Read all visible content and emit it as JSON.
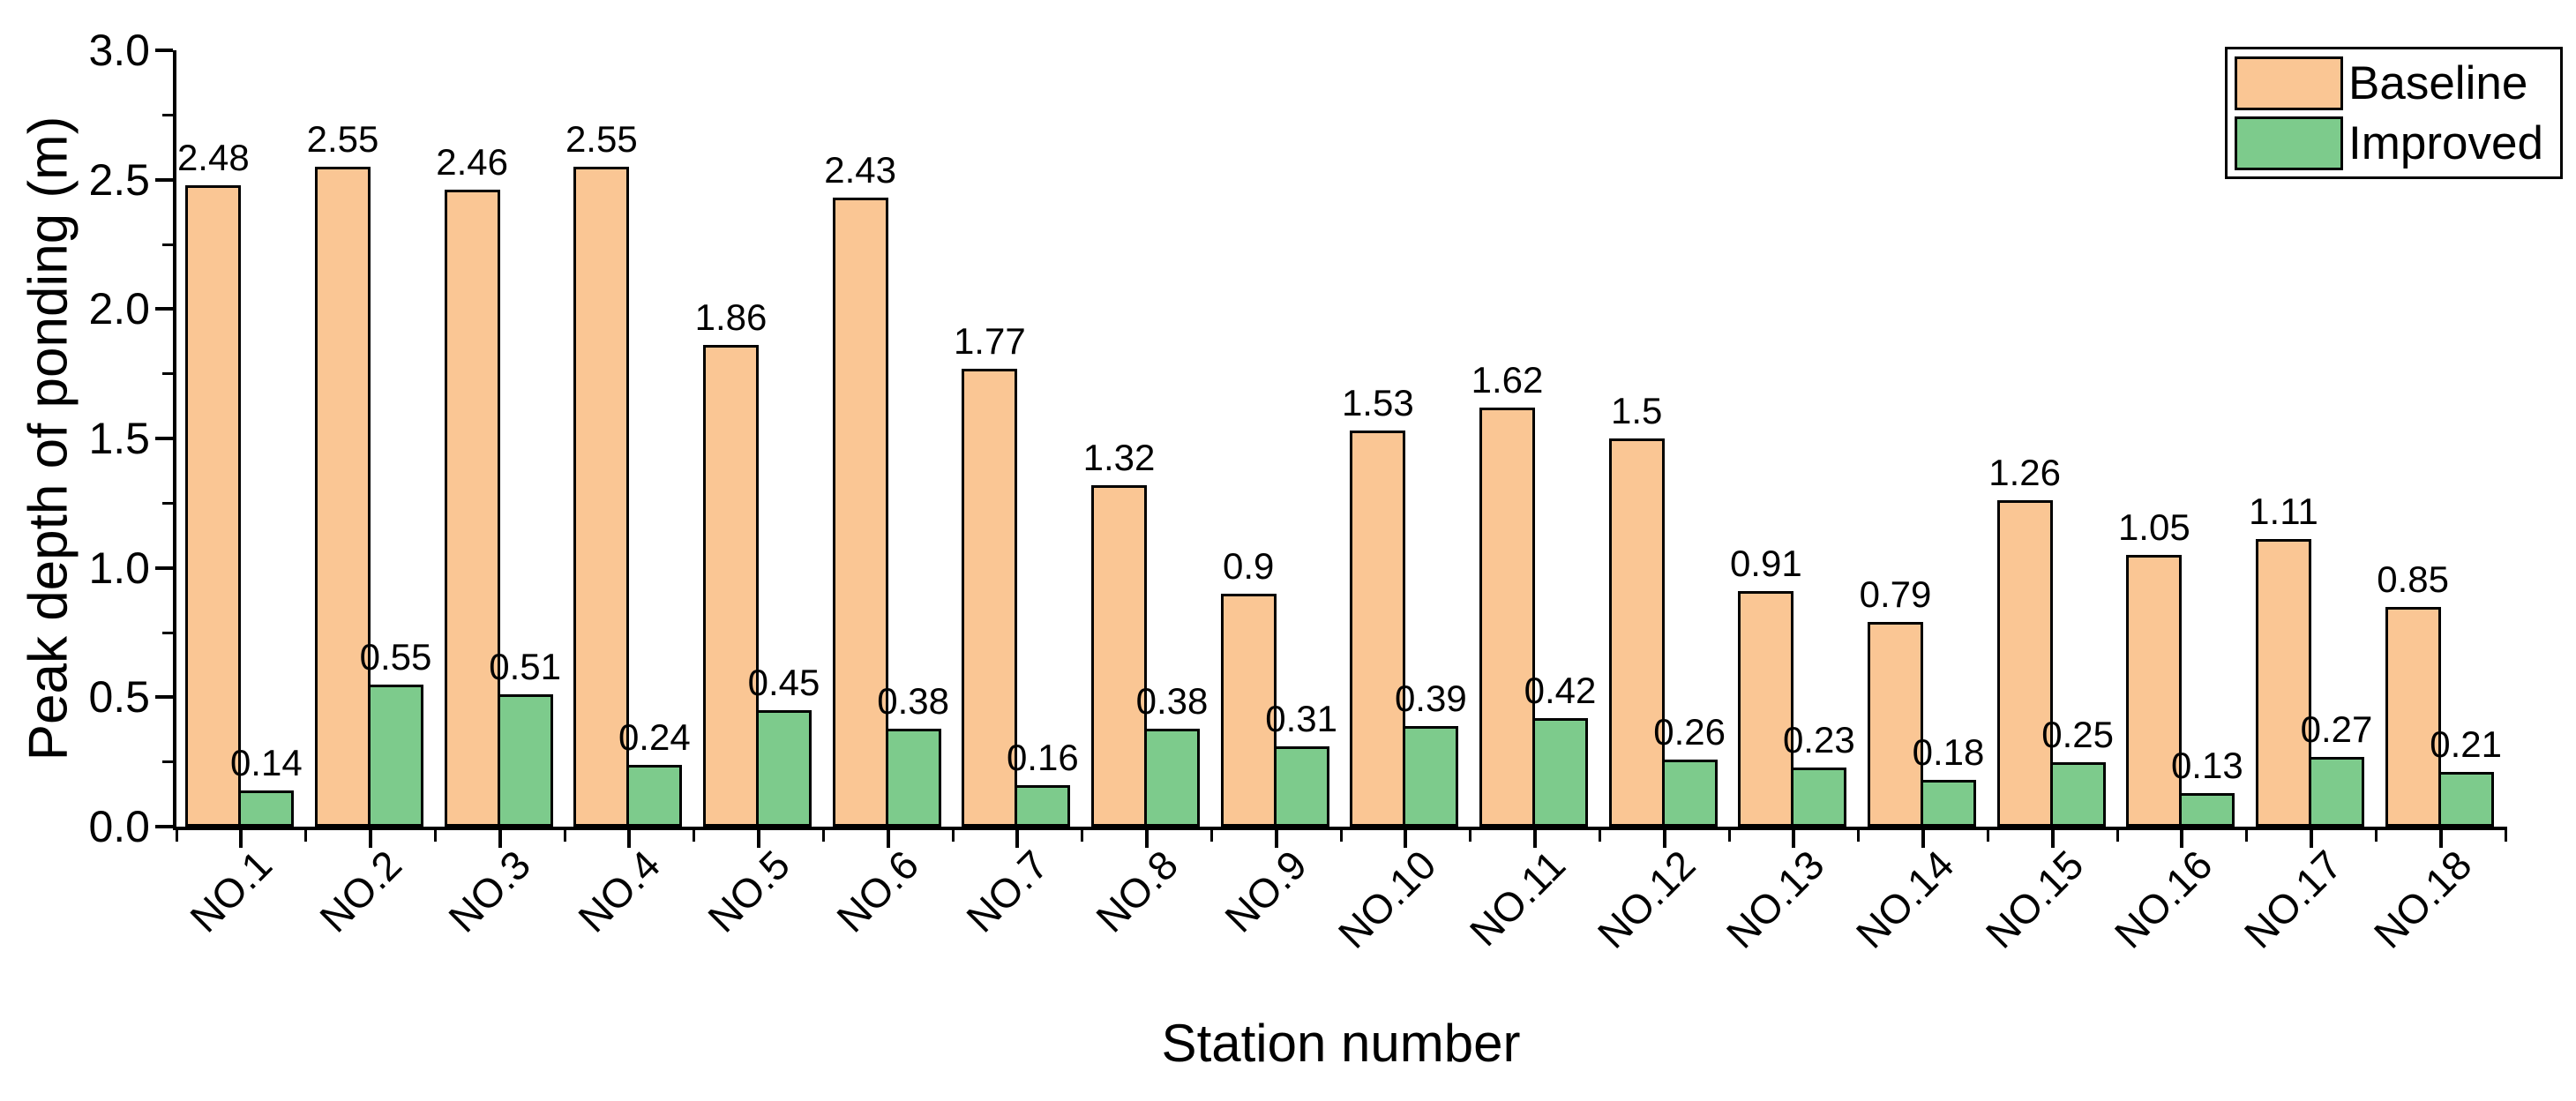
{
  "chart_data": {
    "type": "bar",
    "title": "",
    "xlabel": "Station number",
    "ylabel": "Peak depth of ponding (m)",
    "ylim": [
      0,
      3.0
    ],
    "y_major_ticks": [
      "0.0",
      "0.5",
      "1.0",
      "1.5",
      "2.0",
      "2.5",
      "3.0"
    ],
    "y_minor_ticks": [
      0.25,
      0.75,
      1.25,
      1.75,
      2.25,
      2.75
    ],
    "grid": false,
    "legend_position": "top-right",
    "categories": [
      "NO.1",
      "NO.2",
      "NO.3",
      "NO.4",
      "NO.5",
      "NO.6",
      "NO.7",
      "NO.8",
      "NO.9",
      "NO.10",
      "NO.11",
      "NO.12",
      "NO.13",
      "NO.14",
      "NO.15",
      "NO.16",
      "NO.17",
      "NO.18"
    ],
    "series": [
      {
        "name": "Baseline",
        "color": "#FAC694",
        "values": [
          2.48,
          2.55,
          2.46,
          2.55,
          1.86,
          2.43,
          1.77,
          1.32,
          0.9,
          1.53,
          1.62,
          1.5,
          0.91,
          0.79,
          1.26,
          1.05,
          1.11,
          0.85
        ],
        "labels": [
          "2.48",
          "2.55",
          "2.46",
          "2.55",
          "1.86",
          "2.43",
          "1.77",
          "1.32",
          "0.9",
          "1.53",
          "1.62",
          "1.5",
          "0.91",
          "0.79",
          "1.26",
          "1.05",
          "1.11",
          "0.85"
        ]
      },
      {
        "name": "Improved",
        "color": "#7DCB8C",
        "values": [
          0.14,
          0.55,
          0.51,
          0.24,
          0.45,
          0.38,
          0.16,
          0.38,
          0.31,
          0.39,
          0.42,
          0.26,
          0.23,
          0.18,
          0.25,
          0.13,
          0.27,
          0.21
        ],
        "labels": [
          "0.14",
          "0.55",
          "0.51",
          "0.24",
          "0.45",
          "0.38",
          "0.16",
          "0.38",
          "0.31",
          "0.39",
          "0.42",
          "0.26",
          "0.23",
          "0.18",
          "0.25",
          "0.13",
          "0.27",
          "0.21"
        ]
      }
    ]
  },
  "legend": {
    "items": [
      {
        "label": "Baseline",
        "color": "#FAC694"
      },
      {
        "label": "Improved",
        "color": "#7DCB8C"
      }
    ]
  },
  "colors": {
    "background": "#FFFFFF",
    "axis": "#000000",
    "text": "#000000",
    "bar_border": "#000000"
  }
}
